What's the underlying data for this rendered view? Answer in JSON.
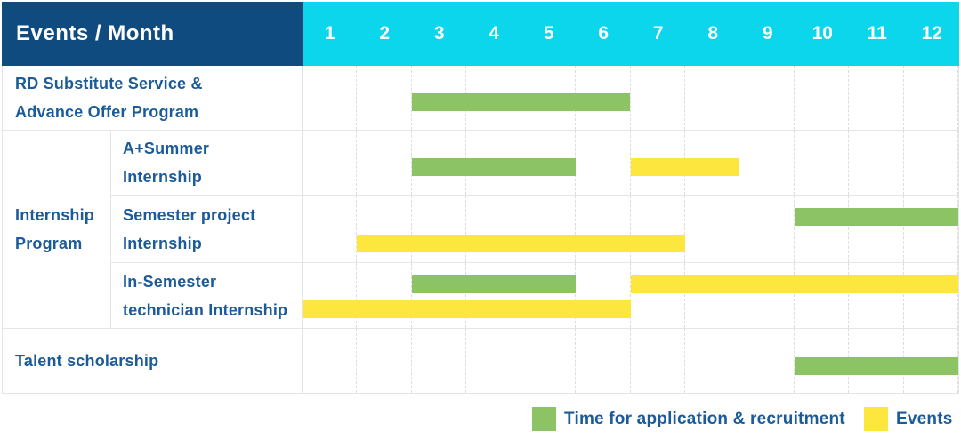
{
  "header": {
    "title": "Events / Month"
  },
  "legend": {
    "items": [
      {
        "id": "application",
        "label": "Time for application & recruitment",
        "color": "#8bc365"
      },
      {
        "id": "event",
        "label": "Events",
        "color": "#fde63e"
      }
    ]
  },
  "colors": {
    "header_bg": "#0f4b7e",
    "months_bg": "#0cd6ec",
    "label_text": "#1b5b9a",
    "grid_line": "#e4e4e4",
    "application_bar": "#8bc365",
    "event_bar": "#fde63e"
  },
  "chart_data": {
    "type": "gantt",
    "title": "Events / Month",
    "xlabel": "Month",
    "x_range": [
      1,
      12
    ],
    "x_ticks": [
      "1",
      "2",
      "3",
      "4",
      "5",
      "6",
      "7",
      "8",
      "9",
      "10",
      "11",
      "12"
    ],
    "grid": "on",
    "legend_position": "bottom-right",
    "series": {
      "application": {
        "label": "Time for application & recruitment",
        "color": "#8bc365"
      },
      "event": {
        "label": "Events",
        "color": "#fde63e"
      }
    },
    "groups": {
      "internship-program": {
        "label_lines": [
          "Internship",
          "Program"
        ]
      }
    },
    "rows": [
      {
        "id": "rd-substitute",
        "group": null,
        "label_lines": [
          "RD Substitute Service &",
          "Advance Offer Program"
        ],
        "bars": [
          {
            "series": "application",
            "start_month": 3,
            "end_month": 6,
            "lane": "single"
          }
        ]
      },
      {
        "id": "a-plus-summer-internship",
        "group": "internship-program",
        "label_lines": [
          "A+Summer",
          "Internship"
        ],
        "bars": [
          {
            "series": "application",
            "start_month": 3,
            "end_month": 5,
            "lane": "single"
          },
          {
            "series": "event",
            "start_month": 7,
            "end_month": 8,
            "lane": "single"
          }
        ]
      },
      {
        "id": "semester-project-internship",
        "group": "internship-program",
        "label_lines": [
          "Semester project",
          "Internship"
        ],
        "bars": [
          {
            "series": "application",
            "start_month": 10,
            "end_month": 12,
            "lane": "upper"
          },
          {
            "series": "event",
            "start_month": 2,
            "end_month": 7,
            "lane": "lower"
          }
        ]
      },
      {
        "id": "in-semester-technician-internship",
        "group": "internship-program",
        "label_lines": [
          "In-Semester",
          "technician Internship"
        ],
        "bars": [
          {
            "series": "application",
            "start_month": 3,
            "end_month": 5,
            "lane": "upper"
          },
          {
            "series": "event",
            "start_month": 7,
            "end_month": 12,
            "lane": "upper"
          },
          {
            "series": "event",
            "start_month": 1,
            "end_month": 6,
            "lane": "lower"
          }
        ]
      },
      {
        "id": "talent-scholarship",
        "group": null,
        "label_lines": [
          "Talent scholarship"
        ],
        "bars": [
          {
            "series": "application",
            "start_month": 10,
            "end_month": 12,
            "lane": "single"
          }
        ]
      }
    ]
  }
}
